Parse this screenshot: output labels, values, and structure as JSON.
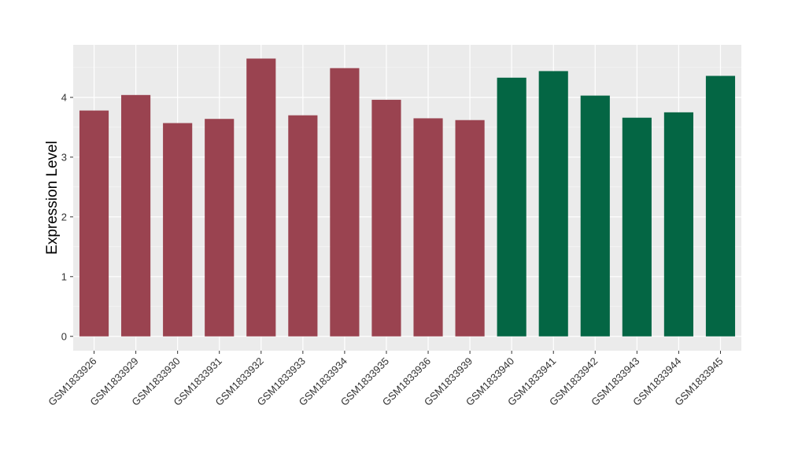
{
  "chart_data": {
    "type": "bar",
    "title": "",
    "xlabel": "",
    "ylabel": "Expression Level",
    "ylim": [
      -0.24,
      4.88
    ],
    "yticks": [
      0,
      1,
      2,
      3,
      4
    ],
    "grid": true,
    "categories": [
      "GSM1833926",
      "GSM1833929",
      "GSM1833930",
      "GSM1833931",
      "GSM1833932",
      "GSM1833933",
      "GSM1833934",
      "GSM1833935",
      "GSM1833936",
      "GSM1833939",
      "GSM1833940",
      "GSM1833941",
      "GSM1833942",
      "GSM1833943",
      "GSM1833944",
      "GSM1833945"
    ],
    "values": [
      3.78,
      4.04,
      3.57,
      3.64,
      4.65,
      3.7,
      4.49,
      3.96,
      3.65,
      3.62,
      4.33,
      4.44,
      4.03,
      3.66,
      3.75,
      4.36
    ],
    "groups": [
      0,
      0,
      0,
      0,
      0,
      0,
      0,
      0,
      0,
      0,
      1,
      1,
      1,
      1,
      1,
      1
    ],
    "colors": [
      "#9a4350",
      "#046644"
    ],
    "panel_background": "#ebebeb",
    "grid_color": "#ffffff"
  }
}
